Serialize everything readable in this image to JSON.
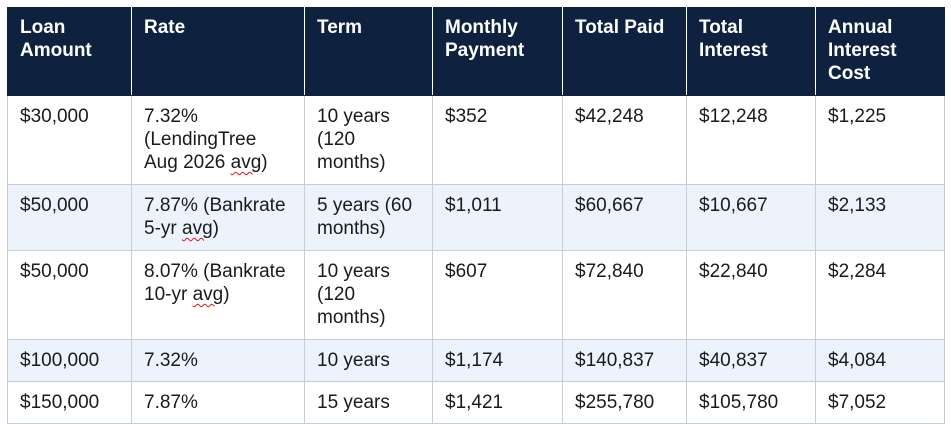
{
  "table": {
    "headers": [
      "Loan Amount",
      "Rate",
      "Term",
      "Monthly Payment",
      "Total Paid",
      "Total Interest",
      "Annual Interest Cost"
    ],
    "rows": [
      {
        "loan_amount": "$30,000",
        "rate_text": "7.32% (LendingTree Aug 2026 ",
        "rate_marked": "avg",
        "rate_tail": ")",
        "term": "10 years (120 months)",
        "monthly_payment": "$352",
        "total_paid": "$42,248",
        "total_interest": "$12,248",
        "annual_interest_cost": "$1,225"
      },
      {
        "loan_amount": "$50,000",
        "rate_text": "7.87% (Bankrate 5-yr ",
        "rate_marked": "avg",
        "rate_tail": ")",
        "term": "5 years (60 months)",
        "monthly_payment": "$1,011",
        "total_paid": "$60,667",
        "total_interest": "$10,667",
        "annual_interest_cost": "$2,133"
      },
      {
        "loan_amount": "$50,000",
        "rate_text": "8.07% (Bankrate 10-yr ",
        "rate_marked": "avg",
        "rate_tail": ")",
        "term": "10 years (120 months)",
        "monthly_payment": "$607",
        "total_paid": "$72,840",
        "total_interest": "$22,840",
        "annual_interest_cost": "$2,284"
      },
      {
        "loan_amount": "$100,000",
        "rate_text": "7.32%",
        "rate_marked": "",
        "rate_tail": "",
        "term": "10 years",
        "monthly_payment": "$1,174",
        "total_paid": "$140,837",
        "total_interest": "$40,837",
        "annual_interest_cost": "$4,084"
      },
      {
        "loan_amount": "$150,000",
        "rate_text": "7.87%",
        "rate_marked": "",
        "rate_tail": "",
        "term": "15 years",
        "monthly_payment": "$1,421",
        "total_paid": "$255,780",
        "total_interest": "$105,780",
        "annual_interest_cost": "$7,052"
      }
    ]
  },
  "colors": {
    "header_bg": "#0e223f",
    "header_text": "#ffffff",
    "alt_row_bg": "#edf3fc",
    "border": "#c8ccd4",
    "spellcheck_underline": "#d11a1a"
  }
}
